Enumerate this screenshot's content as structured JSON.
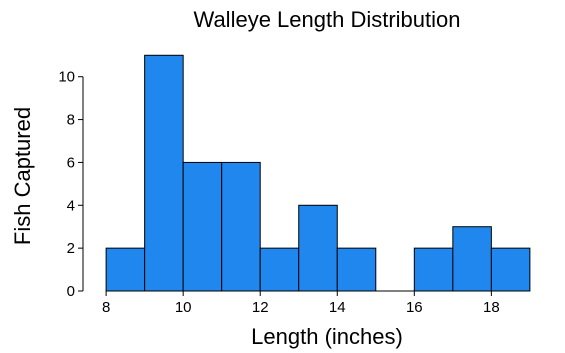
{
  "chart_data": {
    "type": "bar",
    "title": "Walleye Length Distribution",
    "xlabel": "Length (inches)",
    "ylabel": "Fish Captured",
    "bins": [
      {
        "start": 8,
        "end": 9,
        "count": 2
      },
      {
        "start": 9,
        "end": 10,
        "count": 11
      },
      {
        "start": 10,
        "end": 11,
        "count": 6
      },
      {
        "start": 11,
        "end": 12,
        "count": 6
      },
      {
        "start": 12,
        "end": 13,
        "count": 2
      },
      {
        "start": 13,
        "end": 14,
        "count": 4
      },
      {
        "start": 14,
        "end": 15,
        "count": 2
      },
      {
        "start": 15,
        "end": 16,
        "count": 0
      },
      {
        "start": 16,
        "end": 17,
        "count": 2
      },
      {
        "start": 17,
        "end": 18,
        "count": 3
      },
      {
        "start": 18,
        "end": 19,
        "count": 2
      }
    ],
    "xlim": [
      7.4,
      19.6
    ],
    "ylim": [
      0,
      11.2
    ],
    "xticks": [
      8,
      10,
      12,
      14,
      16,
      18
    ],
    "yticks": [
      0,
      2,
      4,
      6,
      8,
      10
    ],
    "grid": false,
    "legend": "none",
    "bar_color": "#1F87EE",
    "bar_edge_color": "#000000"
  }
}
